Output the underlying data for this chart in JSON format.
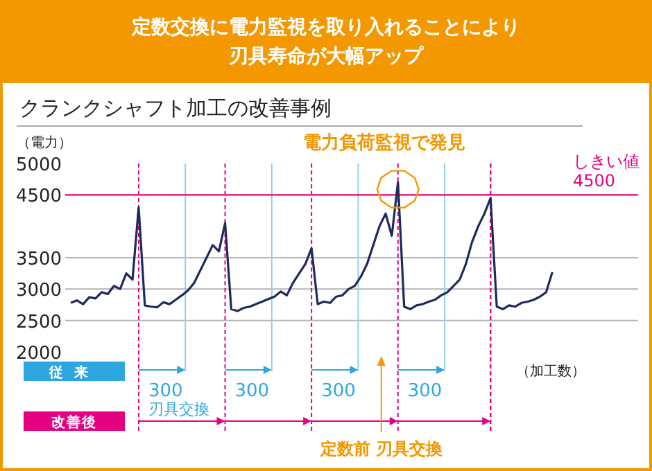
{
  "chart_data": {
    "type": "line",
    "title": "定数交換に電力監視を取り入れることにより刃具寿命が大幅アップ",
    "subtitle": "クランクシャフト加工の改善事例",
    "ylabel": "（電力）",
    "xlabel": "（加工数）",
    "categories": [
      null,
      null,
      null,
      null,
      null,
      null,
      null,
      null,
      null,
      null,
      null,
      null,
      null,
      null,
      null,
      null,
      null,
      null,
      null,
      null,
      null,
      null,
      null,
      null,
      null,
      null,
      null,
      null,
      null,
      null,
      null,
      null,
      null,
      null,
      null,
      null,
      null,
      null,
      null,
      null,
      null,
      null,
      null,
      null,
      null,
      null,
      null,
      null,
      null,
      null,
      null,
      null,
      null,
      null,
      null,
      null,
      null,
      null,
      null,
      null,
      null,
      null,
      null,
      null,
      null,
      null,
      null,
      null,
      null,
      null,
      null,
      null,
      null,
      null,
      null,
      null,
      null,
      null,
      null,
      null,
      null,
      null,
      null,
      null,
      null,
      null,
      null,
      null,
      null,
      null,
      null,
      null
    ],
    "ylim": [
      2000,
      5000
    ],
    "yticks": [
      2000,
      2500,
      3000,
      3500,
      4500,
      5000
    ],
    "grid": true,
    "marker": "none",
    "line_style": "solid",
    "ref_lines": [
      {
        "axis": "y",
        "value": 4500,
        "label": "しきい値\n4500",
        "color": "#e4007f",
        "line_style": "solid"
      }
    ],
    "annotations": [
      "電力負荷監視で発見",
      "従来",
      "改善後",
      "300",
      "300",
      "300",
      "300",
      "刃具交換",
      "定数前 刃具交換"
    ],
    "series": [
      {
        "color": "#1f2a5c",
        "values": [
          2780,
          2820,
          2760,
          2870,
          2850,
          2950,
          2920,
          3050,
          3000,
          3250,
          3150,
          4300,
          2740,
          2720,
          2710,
          2790,
          2760,
          2830,
          2900,
          2980,
          3100,
          3300,
          3500,
          3700,
          3600,
          4050,
          2680,
          2650,
          2700,
          2720,
          2760,
          2800,
          2840,
          2880,
          2960,
          2900,
          3100,
          3250,
          3400,
          3650,
          2760,
          2800,
          2780,
          2880,
          2900,
          3000,
          3050,
          3200,
          3400,
          3700,
          4000,
          4200,
          3850,
          4700,
          2720,
          2680,
          2740,
          2760,
          2800,
          2830,
          2900,
          2950,
          3050,
          3150,
          3400,
          3750,
          4000,
          4200,
          4450,
          2720,
          2680,
          2740,
          2720,
          2780,
          2800,
          2830,
          2880,
          2950,
          3270,
          null,
          null,
          null,
          null,
          null,
          null,
          null,
          null,
          null,
          null,
          null,
          null,
          null
        ]
      }
    ]
  }
}
